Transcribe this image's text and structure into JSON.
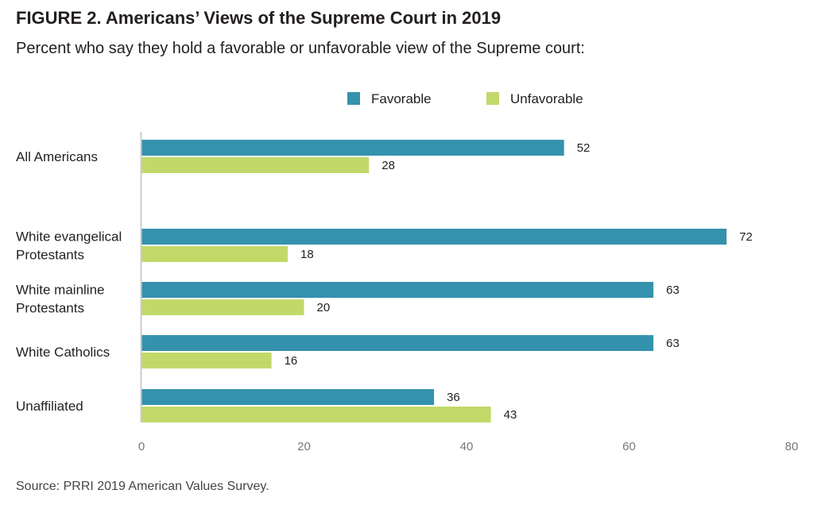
{
  "title": "FIGURE 2.  Americans’ Views of the Supreme Court in 2019",
  "subtitle": "Percent who say they hold a favorable or unfavorable view of the Supreme court:",
  "source": "Source: PRRI 2019 American Values Survey.",
  "colors": {
    "favorable": "#3592ad",
    "unfavorable": "#c2d96a",
    "axis": "#cccccc"
  },
  "chart_data": {
    "type": "bar",
    "orientation": "horizontal",
    "title": "FIGURE 2.  Americans’ Views of the Supreme Court in 2019",
    "subtitle": "Percent who say they hold a favorable or unfavorable view of the Supreme court:",
    "categories": [
      "All Americans",
      "White evangelical Protestants",
      "White mainline Protestants",
      "White Catholics",
      "Unaffiliated"
    ],
    "category_lines": [
      [
        "All Americans"
      ],
      [
        "White evangelical",
        "Protestants"
      ],
      [
        "White mainline",
        "Protestants"
      ],
      [
        "White Catholics"
      ],
      [
        "Unaffiliated"
      ]
    ],
    "series": [
      {
        "name": "Favorable",
        "values": [
          52,
          72,
          63,
          63,
          36
        ]
      },
      {
        "name": "Unfavorable",
        "values": [
          28,
          18,
          20,
          16,
          43
        ]
      }
    ],
    "xlim": [
      0,
      80
    ],
    "xticks": [
      0,
      20,
      40,
      60,
      80
    ],
    "legend": "top",
    "grid": false
  }
}
